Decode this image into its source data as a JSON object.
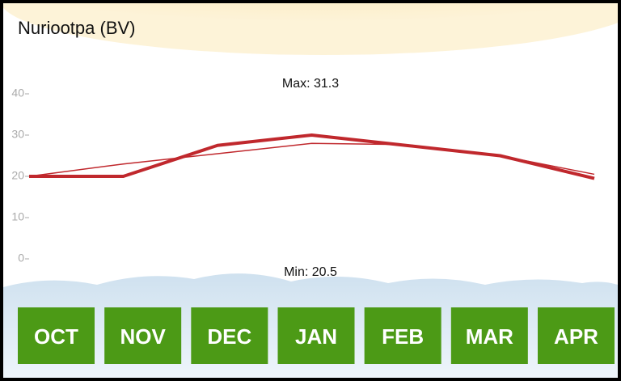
{
  "chart_data": {
    "type": "line",
    "title": "Nuriootpa (BV)",
    "categories": [
      "OCT",
      "NOV",
      "DEC",
      "JAN",
      "FEB",
      "MAR",
      "APR"
    ],
    "series": [
      {
        "color": "#c0282d",
        "values": [
          20,
          20,
          27.5,
          30,
          27.5,
          25,
          19.5
        ]
      },
      {
        "color": "#c0282d",
        "values": [
          20,
          23,
          25.5,
          28,
          27.7,
          25,
          20.5
        ]
      }
    ],
    "annotations": [
      "Max: 31.3",
      "Min: 20.5"
    ],
    "ylim": [
      0,
      40
    ],
    "yticks": [
      0,
      10,
      20,
      30,
      40
    ]
  }
}
